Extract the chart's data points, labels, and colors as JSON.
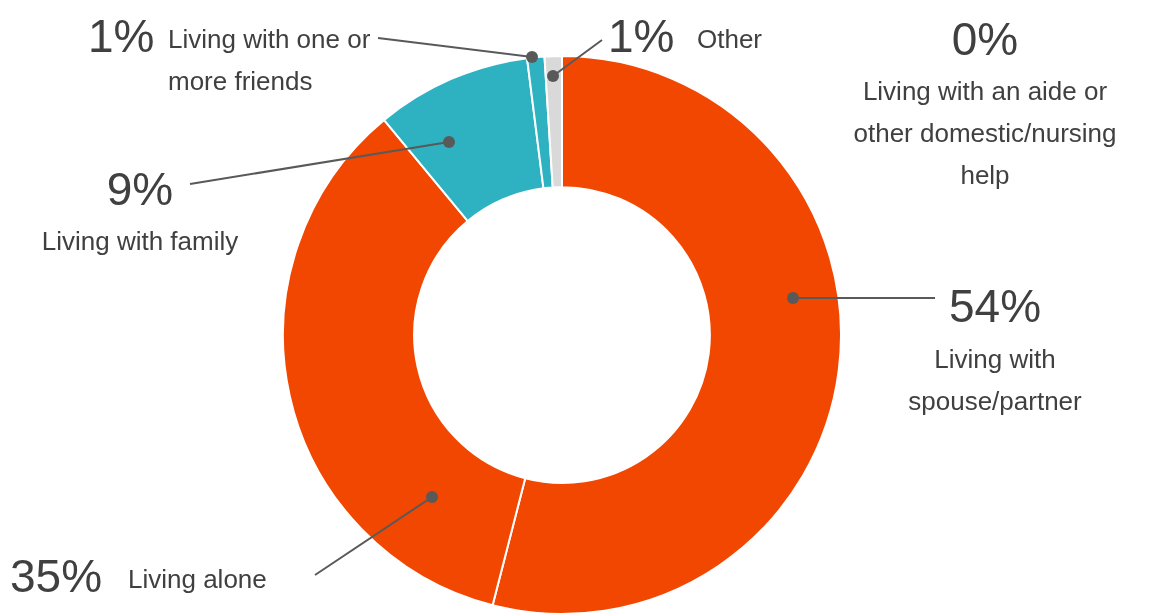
{
  "chart_data": {
    "type": "donut",
    "categories": [
      "Living with spouse/partner",
      "Living alone",
      "Living with family",
      "Living with one or more friends",
      "Living with an aide or other domestic/nursing help",
      "Other"
    ],
    "values": [
      54,
      35,
      9,
      1,
      0,
      1
    ],
    "value_labels": [
      "54%",
      "35%",
      "9%",
      "1%",
      "0%",
      "1%"
    ],
    "colors": [
      "#f24700",
      "#f24700",
      "#2eb2c2",
      "#2eb2c2",
      "#2eb2c2",
      "#d9d9d9"
    ],
    "legend": false
  }
}
